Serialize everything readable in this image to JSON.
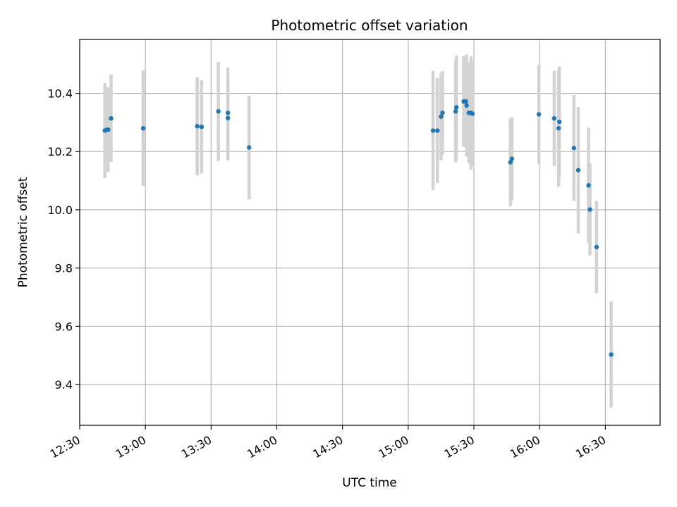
{
  "chart_data": {
    "type": "scatter",
    "title": "Photometric offset variation",
    "xlabel": "UTC time",
    "ylabel": "Photometric offset",
    "xlim": [
      "12:30",
      "16:55"
    ],
    "ylim": [
      9.26,
      10.585
    ],
    "grid": true,
    "x_ticks": [
      "12:30",
      "13:00",
      "13:30",
      "14:00",
      "14:30",
      "15:00",
      "15:30",
      "16:00",
      "16:30"
    ],
    "y_ticks": [
      "9.4",
      "9.6",
      "9.8",
      "10.0",
      "10.2",
      "10.4"
    ],
    "series": [
      {
        "marker_color": "#1f77b4",
        "errorbar_color": "#d3d3d3",
        "points": [
          {
            "x": "12:41:30",
            "y": 10.272,
            "err": 0.163
          },
          {
            "x": "12:42:20",
            "y": 10.275,
            "err": 0.145
          },
          {
            "x": "12:43:00",
            "y": 10.275,
            "err": 0.145
          },
          {
            "x": "12:44:20",
            "y": 10.314,
            "err": 0.15
          },
          {
            "x": "12:59:00",
            "y": 10.28,
            "err": 0.198
          },
          {
            "x": "13:23:40",
            "y": 10.287,
            "err": 0.168
          },
          {
            "x": "13:25:40",
            "y": 10.285,
            "err": 0.16
          },
          {
            "x": "13:33:20",
            "y": 10.338,
            "err": 0.17
          },
          {
            "x": "13:37:40",
            "y": 10.315,
            "err": 0.145
          },
          {
            "x": "13:37:40",
            "y": 10.333,
            "err": 0.155
          },
          {
            "x": "13:47:20",
            "y": 10.214,
            "err": 0.178
          },
          {
            "x": "15:11:20",
            "y": 10.272,
            "err": 0.205
          },
          {
            "x": "15:13:20",
            "y": 10.272,
            "err": 0.18
          },
          {
            "x": "15:15:00",
            "y": 10.32,
            "err": 0.15
          },
          {
            "x": "15:15:40",
            "y": 10.333,
            "err": 0.143
          },
          {
            "x": "15:21:40",
            "y": 10.338,
            "err": 0.175
          },
          {
            "x": "15:22:00",
            "y": 10.352,
            "err": 0.178
          },
          {
            "x": "15:25:20",
            "y": 10.372,
            "err": 0.155
          },
          {
            "x": "15:26:20",
            "y": 10.372,
            "err": 0.158
          },
          {
            "x": "15:26:40",
            "y": 10.358,
            "err": 0.175
          },
          {
            "x": "15:27:40",
            "y": 10.333,
            "err": 0.173
          },
          {
            "x": "15:28:40",
            "y": 10.333,
            "err": 0.195
          },
          {
            "x": "15:29:20",
            "y": 10.33,
            "err": 0.18
          },
          {
            "x": "15:46:40",
            "y": 10.163,
            "err": 0.15
          },
          {
            "x": "15:47:20",
            "y": 10.175,
            "err": 0.143
          },
          {
            "x": "15:59:40",
            "y": 10.328,
            "err": 0.17
          },
          {
            "x": "16:06:40",
            "y": 10.314,
            "err": 0.163
          },
          {
            "x": "16:08:40",
            "y": 10.28,
            "err": 0.2
          },
          {
            "x": "16:09:00",
            "y": 10.302,
            "err": 0.19
          },
          {
            "x": "16:15:40",
            "y": 10.212,
            "err": 0.182
          },
          {
            "x": "16:17:40",
            "y": 10.136,
            "err": 0.217
          },
          {
            "x": "16:22:20",
            "y": 10.084,
            "err": 0.198
          },
          {
            "x": "16:23:00",
            "y": 10.001,
            "err": 0.158
          },
          {
            "x": "16:26:00",
            "y": 9.872,
            "err": 0.158
          },
          {
            "x": "16:32:40",
            "y": 9.503,
            "err": 0.182
          }
        ]
      }
    ]
  }
}
